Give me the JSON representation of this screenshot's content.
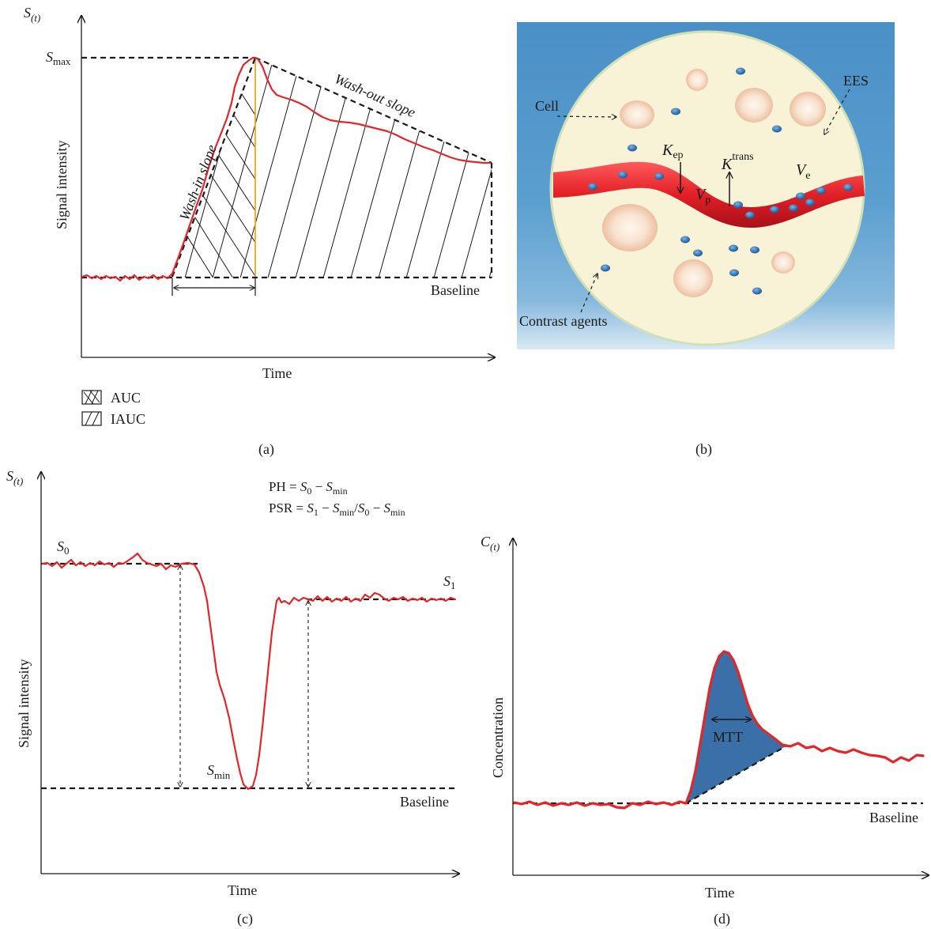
{
  "panel_a": {
    "caption": "(a)",
    "y_axis_symbol": "S",
    "y_axis_sub": "(t)",
    "smax_main": "S",
    "smax_sub": "max",
    "ylabel": "Signal intensity",
    "xlabel": "Time",
    "wash_in": "Wash-in slope",
    "wash_out": "Wash-out slope",
    "baseline": "Baseline",
    "legend": [
      "AUC",
      "IAUC"
    ]
  },
  "panel_b": {
    "caption": "(b)",
    "labels": {
      "cell": "Cell",
      "ees": "EES",
      "contrast": "Contrast agents",
      "kep_main": "K",
      "kep_sub": "ep",
      "ktrans_main": "K",
      "ktrans_sup": "trans",
      "vp_main": "V",
      "vp_sub": "p",
      "ve_main": "V",
      "ve_sub": "e"
    },
    "colors": {
      "background": "#4f94c8",
      "circle": "#f7f1d2",
      "vessel": "#e02a2a",
      "agent": "#2a6db0",
      "cell": "#f6dcc6"
    }
  },
  "panel_c": {
    "caption": "(c)",
    "y_axis_symbol": "S",
    "y_axis_sub": "(t)",
    "eq1": {
      "lhs": "PH = ",
      "s0": "S",
      "s0sub": "0",
      "minus": " − ",
      "smin": "S",
      "sminsub": "min"
    },
    "eq2": {
      "lhs": "PSR = ",
      "s1": "S",
      "s1sub": "1",
      "m1": " − ",
      "smin": "S",
      "sminsub": "min",
      "slash": "/",
      "s0": "S",
      "s0sub": "0",
      "m2": " − ",
      "smin2": "S",
      "smin2sub": "min"
    },
    "s0_main": "S",
    "s0_sub": "0",
    "s1_main": "S",
    "s1_sub": "1",
    "smin_main": "S",
    "smin_sub": "min",
    "ylabel": "Signal intensity",
    "xlabel": "Time",
    "baseline": "Baseline"
  },
  "panel_d": {
    "caption": "(d)",
    "y_axis_symbol": "C",
    "y_axis_sub": "(t)",
    "ylabel": "Concentration",
    "xlabel": "Time",
    "mtt": "MTT",
    "baseline": "Baseline",
    "colors": {
      "fill": "#3b6fa8",
      "curve": "#e3262a"
    }
  }
}
